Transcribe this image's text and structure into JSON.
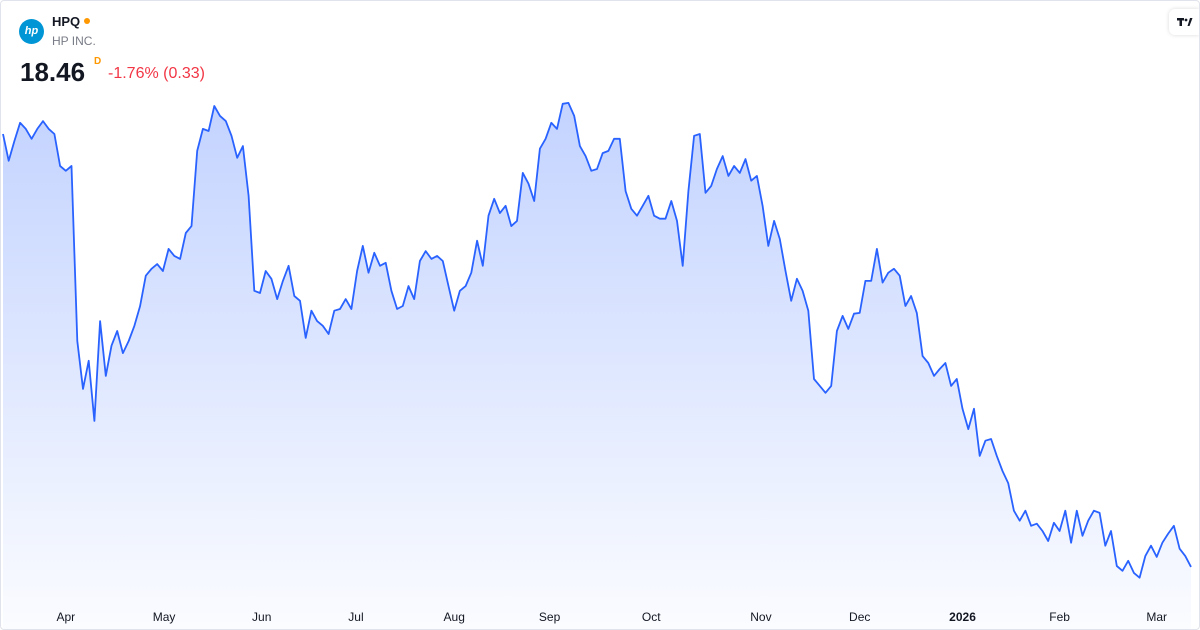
{
  "chart_data": {
    "type": "line",
    "symbol": "HPQ",
    "name": "HP INC.",
    "price": "18.46",
    "interval": "D",
    "change": "-1.76% (0.33)",
    "logo": "hp",
    "color": "#2962ff",
    "xlim": [
      0,
      208
    ],
    "ylim": [
      17.67,
      31.56
    ],
    "xticks": [
      {
        "value": 11,
        "label": "Apr"
      },
      {
        "value": 28.2,
        "label": "May"
      },
      {
        "value": 45.3,
        "label": "Jun"
      },
      {
        "value": 61.8,
        "label": "Jul"
      },
      {
        "value": 79,
        "label": "Aug"
      },
      {
        "value": 95.7,
        "label": "Sep"
      },
      {
        "value": 113.5,
        "label": "Oct"
      },
      {
        "value": 132.7,
        "label": "Nov"
      },
      {
        "value": 150,
        "label": "Dec"
      },
      {
        "value": 168,
        "label": "2026"
      },
      {
        "value": 185,
        "label": "Feb"
      },
      {
        "value": 202,
        "label": "Mar"
      }
    ],
    "values": [
      28.48,
      27.86,
      28.32,
      28.74,
      28.6,
      28.37,
      28.6,
      28.78,
      28.6,
      28.48,
      27.74,
      27.63,
      27.74,
      23.69,
      22.58,
      23.23,
      21.84,
      24.15,
      22.88,
      23.58,
      23.92,
      23.41,
      23.69,
      24.04,
      24.5,
      25.2,
      25.36,
      25.47,
      25.31,
      25.82,
      25.66,
      25.59,
      26.19,
      26.35,
      28.09,
      28.6,
      28.55,
      29.13,
      28.9,
      28.78,
      28.44,
      27.93,
      28.2,
      27.05,
      24.85,
      24.8,
      25.31,
      25.13,
      24.66,
      25.08,
      25.43,
      24.73,
      24.62,
      23.76,
      24.39,
      24.15,
      24.04,
      23.85,
      24.39,
      24.43,
      24.66,
      24.43,
      25.31,
      25.89,
      25.27,
      25.73,
      25.43,
      25.5,
      24.85,
      24.43,
      24.5,
      24.96,
      24.66,
      25.54,
      25.77,
      25.59,
      25.66,
      25.54,
      24.96,
      24.39,
      24.85,
      24.96,
      25.27,
      26.01,
      25.43,
      26.59,
      26.98,
      26.65,
      26.82,
      26.35,
      26.47,
      27.58,
      27.33,
      26.93,
      28.14,
      28.37,
      28.74,
      28.6,
      29.18,
      29.2,
      28.9,
      28.2,
      27.97,
      27.63,
      27.67,
      28.04,
      28.09,
      28.37,
      28.37,
      27.16,
      26.75,
      26.59,
      26.82,
      27.05,
      26.59,
      26.52,
      26.52,
      26.93,
      26.47,
      25.43,
      27.16,
      28.44,
      28.48,
      27.12,
      27.28,
      27.67,
      27.97,
      27.51,
      27.74,
      27.58,
      27.9,
      27.4,
      27.51,
      26.82,
      25.89,
      26.47,
      26.05,
      25.31,
      24.62,
      25.13,
      24.85,
      24.39,
      22.81,
      22.65,
      22.49,
      22.65,
      23.92,
      24.27,
      23.97,
      24.32,
      24.34,
      25.08,
      25.08,
      25.82,
      25.04,
      25.27,
      25.36,
      25.2,
      24.5,
      24.73,
      24.34,
      23.34,
      23.18,
      22.88,
      23.04,
      23.18,
      22.65,
      22.81,
      22.12,
      21.65,
      22.12,
      21.03,
      21.38,
      21.42,
      21.03,
      20.68,
      20.4,
      19.76,
      19.53,
      19.76,
      19.41,
      19.46,
      19.29,
      19.06,
      19.48,
      19.29,
      19.76,
      19.02,
      19.76,
      19.18,
      19.53,
      19.76,
      19.71,
      18.95,
      19.29,
      18.48,
      18.37,
      18.6,
      18.32,
      18.21,
      18.71,
      18.95,
      18.69,
      19.02,
      19.23,
      19.41,
      18.88,
      18.71,
      18.46
    ]
  }
}
